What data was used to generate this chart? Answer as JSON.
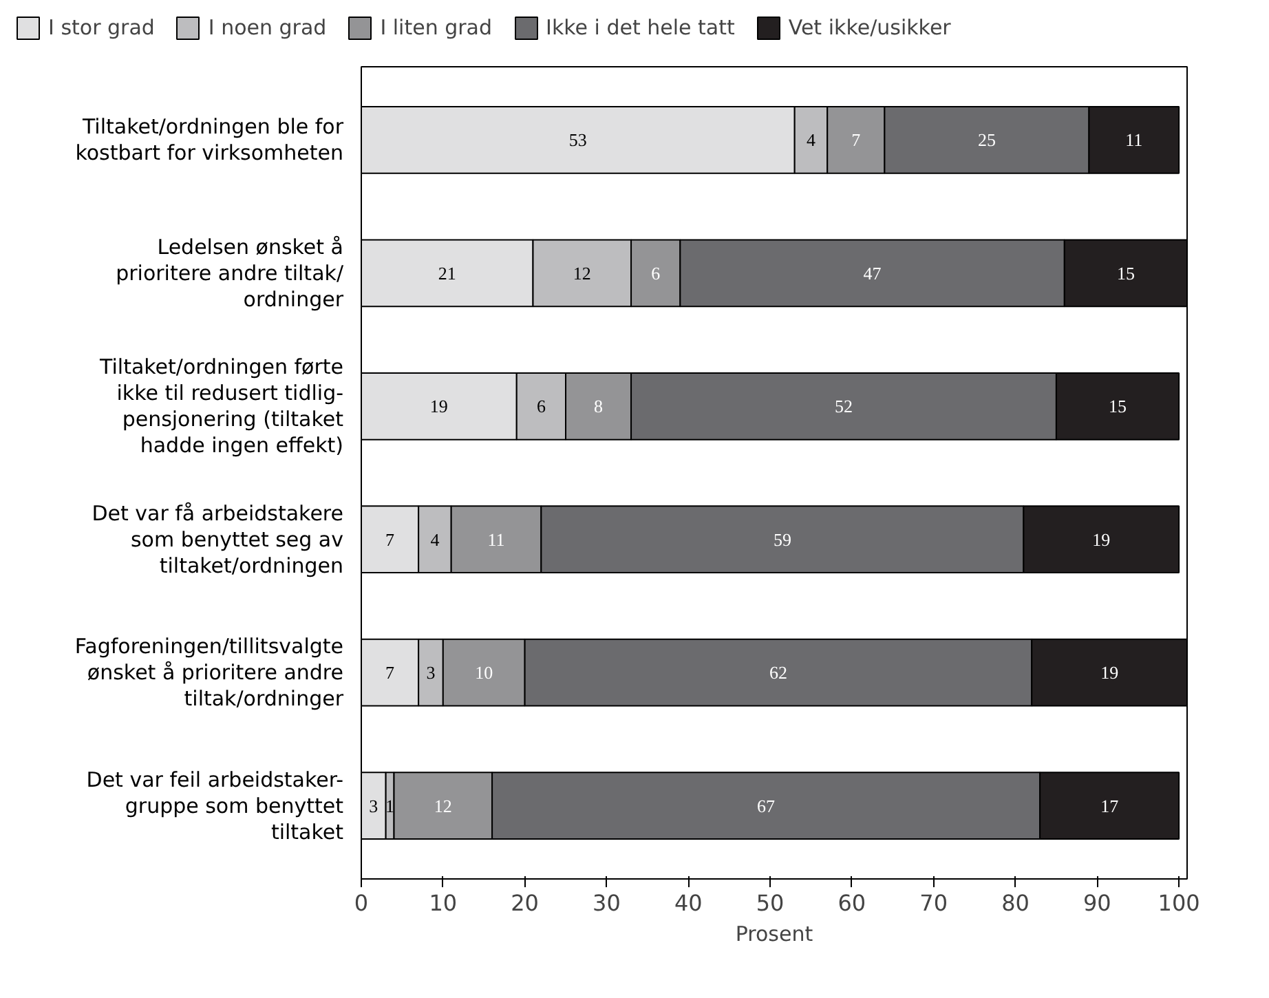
{
  "chart_data": {
    "type": "bar",
    "orientation": "horizontal",
    "stacked": true,
    "data_labels": true,
    "grid": false,
    "legend": "top",
    "xlabel": "Prosent",
    "categories": [
      "Tiltaket/ordningen ble for kostbart for virksomheten",
      "Ledelsen ønsket å prioritere andre tiltak/ ordninger",
      "Tiltaket/ordningen førte ikke til redusert tidlig-pensjonering (tiltaket hadde ingen effekt)",
      "Det var få arbeidstakere som benyttet seg av tiltaket/ordningen",
      "Fagforeningen/tillitsvalgte ønsket å prioritere andre tiltak/ordninger",
      "Det var feil arbeidstaker-gruppe som benyttet tiltaket"
    ],
    "xlim": [
      0,
      101
    ],
    "xticks": [
      0,
      10,
      20,
      30,
      40,
      50,
      60,
      70,
      80,
      90,
      100
    ],
    "series": [
      {
        "name": "I stor grad",
        "color": "#e0e0e1",
        "values": [
          53,
          21,
          19,
          7,
          7,
          3
        ]
      },
      {
        "name": "I noen grad",
        "color": "#bdbdbf",
        "values": [
          4,
          12,
          6,
          4,
          3,
          1
        ]
      },
      {
        "name": "I liten grad",
        "color": "#949496",
        "values": [
          7,
          6,
          8,
          11,
          10,
          12
        ]
      },
      {
        "name": "Ikke i det hele tatt",
        "color": "#6b6b6e",
        "values": [
          25,
          47,
          52,
          59,
          62,
          67
        ]
      },
      {
        "name": "Vet ikke/usikker",
        "color": "#231f20",
        "values": [
          11,
          15,
          15,
          19,
          19,
          17
        ]
      }
    ]
  }
}
